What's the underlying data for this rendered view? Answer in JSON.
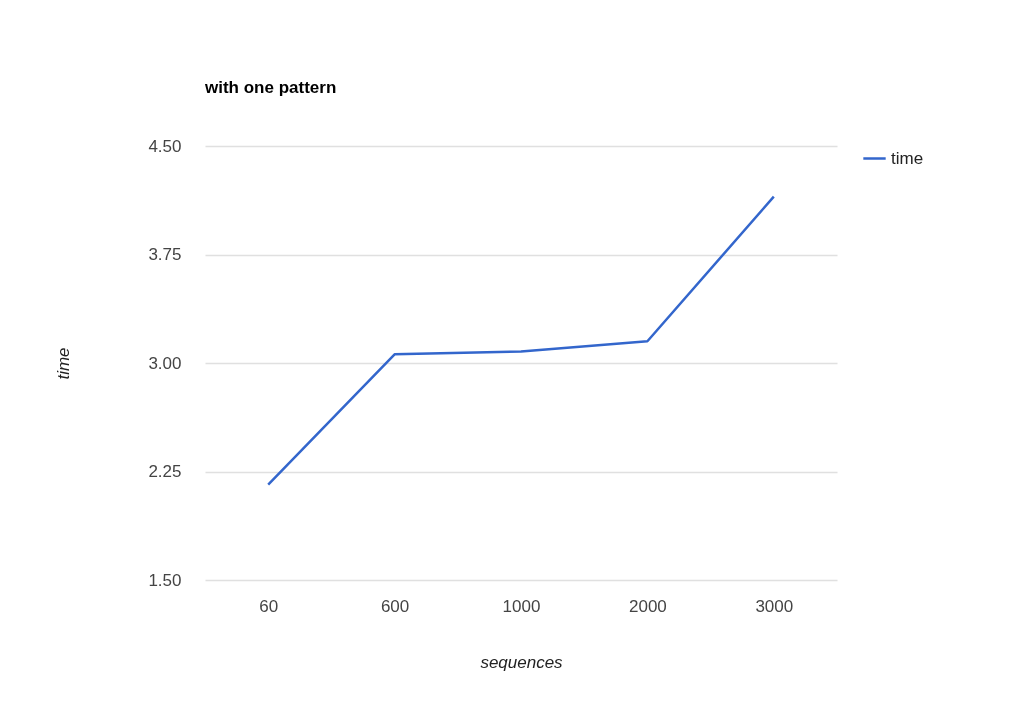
{
  "chart_data": {
    "type": "line",
    "title": "with one pattern",
    "xlabel": "sequences",
    "ylabel": "time",
    "categories": [
      "60",
      "600",
      "1000",
      "2000",
      "3000"
    ],
    "series": [
      {
        "name": "time",
        "color": "#3366cc",
        "values": [
          2.16,
          3.06,
          3.08,
          3.15,
          4.15
        ]
      }
    ],
    "ylim": [
      1.5,
      4.5
    ],
    "yticks": [
      {
        "value": 1.5,
        "label": "1.50"
      },
      {
        "value": 2.25,
        "label": "2.25"
      },
      {
        "value": 3,
        "label": "3.00"
      },
      {
        "value": 3.75,
        "label": "3.75"
      },
      {
        "value": 4.5,
        "label": "4.50"
      }
    ],
    "grid": "y",
    "legend": "top right",
    "marker": "none",
    "line_style": "solid"
  }
}
